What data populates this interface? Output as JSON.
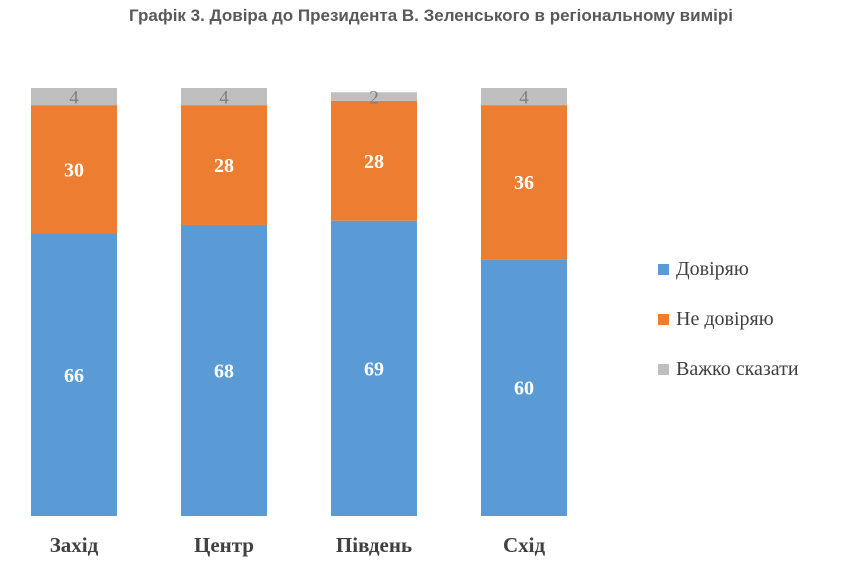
{
  "chart_data": {
    "type": "bar",
    "stacked": true,
    "title": "Графік 3. Довіра до Президента В. Зеленського в регіональному вимірі",
    "categories": [
      "Захід",
      "Центр",
      "Південь",
      "Схід"
    ],
    "series": [
      {
        "name": "Довіряю",
        "color": "#5b9bd5",
        "values": [
          66,
          68,
          69,
          60
        ]
      },
      {
        "name": "Не довіряю",
        "color": "#ed7d31",
        "values": [
          30,
          28,
          28,
          36
        ]
      },
      {
        "name": "Важко сказати",
        "color": "#bfbfbf",
        "values": [
          4,
          4,
          2,
          4
        ]
      }
    ],
    "ylim": [
      0,
      100
    ],
    "grid": false,
    "legend_position": "right"
  }
}
